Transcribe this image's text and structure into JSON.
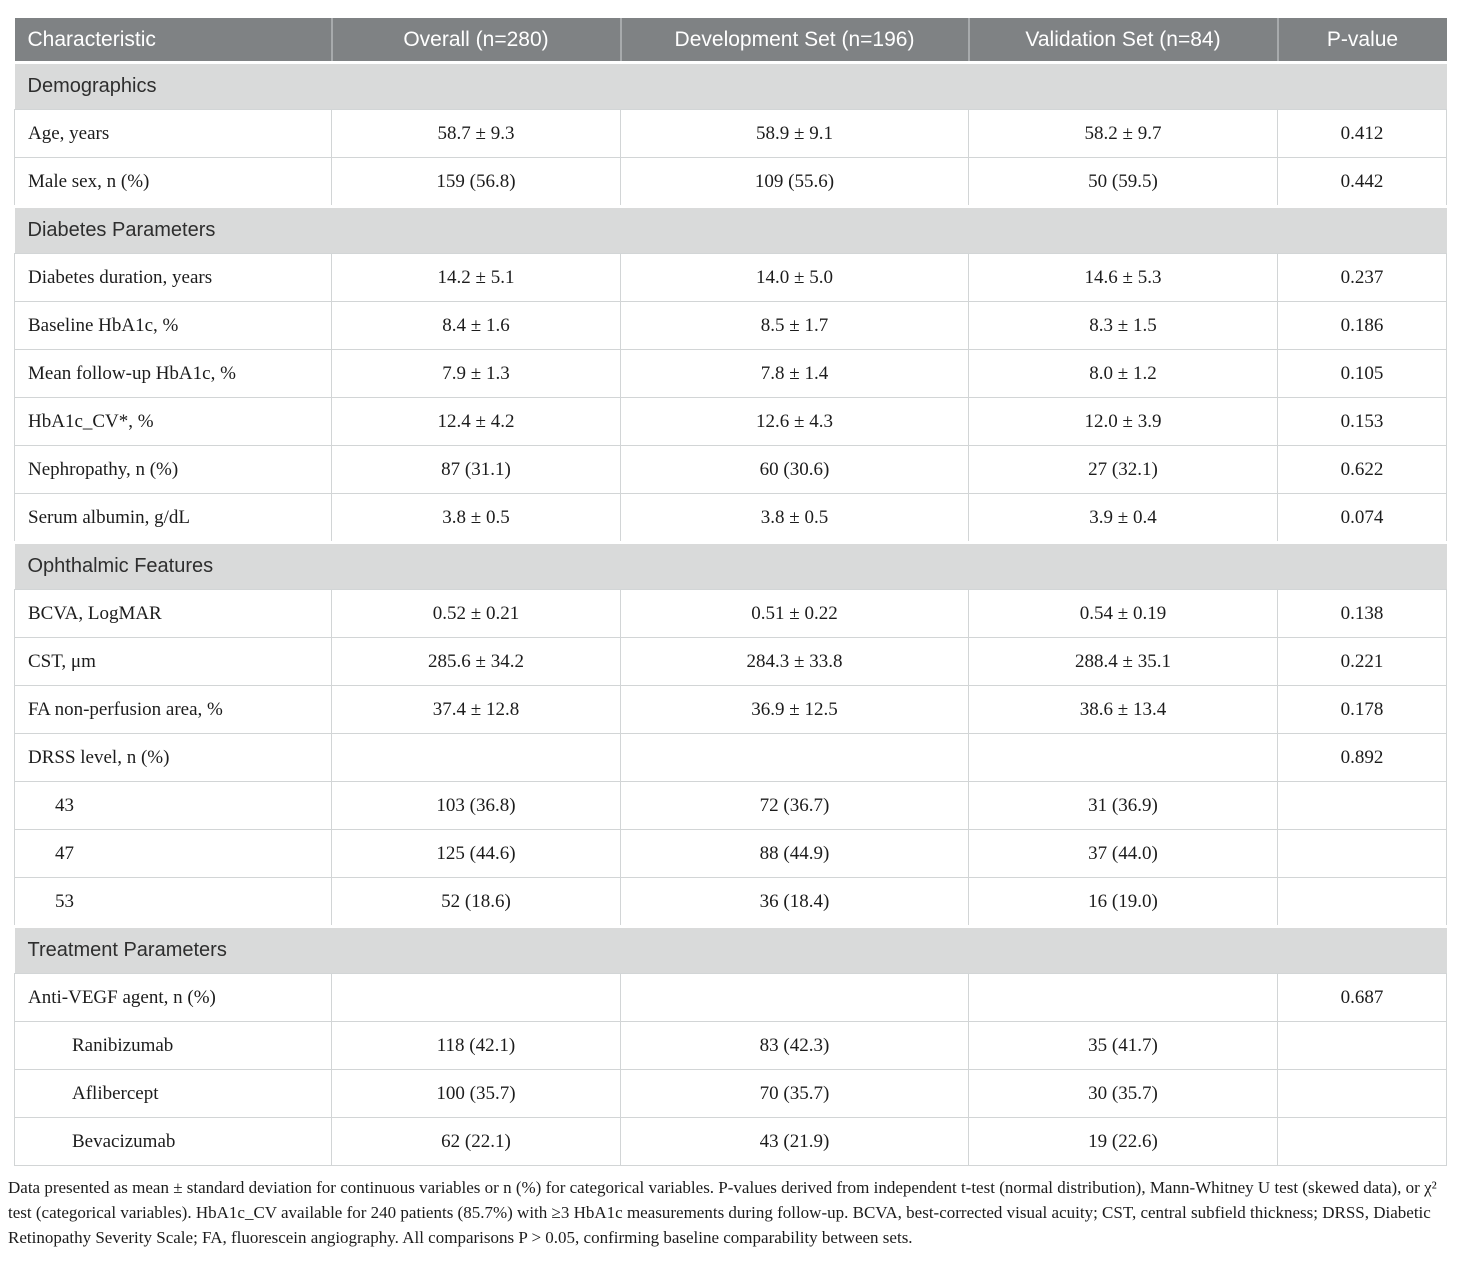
{
  "table": {
    "columns": [
      "Characteristic",
      "Overall (n=280)",
      "Development Set (n=196)",
      "Validation Set (n=84)",
      "P-value"
    ],
    "sections": [
      {
        "title": "Demographics",
        "rows": [
          {
            "label": "Age, years",
            "indent": 0,
            "overall": "58.7 ± 9.3",
            "development": "58.9 ± 9.1",
            "validation": "58.2 ± 9.7",
            "p": "0.412"
          },
          {
            "label": "Male sex, n (%)",
            "indent": 0,
            "overall": "159 (56.8)",
            "development": "109 (55.6)",
            "validation": "50 (59.5)",
            "p": "0.442"
          }
        ]
      },
      {
        "title": "Diabetes Parameters",
        "rows": [
          {
            "label": "Diabetes duration, years",
            "indent": 0,
            "overall": "14.2 ± 5.1",
            "development": "14.0 ± 5.0",
            "validation": "14.6 ± 5.3",
            "p": "0.237"
          },
          {
            "label": "Baseline HbA1c, %",
            "indent": 0,
            "overall": "8.4 ± 1.6",
            "development": "8.5 ± 1.7",
            "validation": "8.3 ± 1.5",
            "p": "0.186"
          },
          {
            "label": "Mean follow-up HbA1c, %",
            "indent": 0,
            "overall": "7.9 ± 1.3",
            "development": "7.8 ± 1.4",
            "validation": "8.0 ± 1.2",
            "p": "0.105"
          },
          {
            "label": "HbA1c_CV*, %",
            "indent": 0,
            "overall": "12.4 ± 4.2",
            "development": "12.6 ± 4.3",
            "validation": "12.0 ± 3.9",
            "p": "0.153"
          },
          {
            "label": "Nephropathy, n (%)",
            "indent": 0,
            "overall": "87 (31.1)",
            "development": "60 (30.6)",
            "validation": "27 (32.1)",
            "p": "0.622"
          },
          {
            "label": "Serum albumin, g/dL",
            "indent": 0,
            "overall": "3.8 ± 0.5",
            "development": "3.8 ± 0.5",
            "validation": "3.9 ± 0.4",
            "p": "0.074"
          }
        ]
      },
      {
        "title": "Ophthalmic Features",
        "rows": [
          {
            "label": "BCVA, LogMAR",
            "indent": 0,
            "overall": "0.52 ± 0.21",
            "development": "0.51 ± 0.22",
            "validation": "0.54 ± 0.19",
            "p": "0.138"
          },
          {
            "label": "CST, μm",
            "indent": 0,
            "overall": "285.6 ± 34.2",
            "development": "284.3 ± 33.8",
            "validation": "288.4 ± 35.1",
            "p": "0.221"
          },
          {
            "label": "FA non-perfusion area, %",
            "indent": 0,
            "overall": "37.4 ± 12.8",
            "development": "36.9 ± 12.5",
            "validation": "38.6 ± 13.4",
            "p": "0.178"
          },
          {
            "label": "DRSS level, n (%)",
            "indent": 0,
            "overall": "",
            "development": "",
            "validation": "",
            "p": "0.892"
          },
          {
            "label": "43",
            "indent": 1,
            "overall": "103 (36.8)",
            "development": "72 (36.7)",
            "validation": "31 (36.9)",
            "p": ""
          },
          {
            "label": "47",
            "indent": 1,
            "overall": "125 (44.6)",
            "development": "88 (44.9)",
            "validation": "37 (44.0)",
            "p": ""
          },
          {
            "label": "53",
            "indent": 1,
            "overall": "52 (18.6)",
            "development": "36 (18.4)",
            "validation": "16 (19.0)",
            "p": ""
          }
        ]
      },
      {
        "title": "Treatment Parameters",
        "rows": [
          {
            "label": "Anti-VEGF agent, n (%)",
            "indent": 0,
            "overall": "",
            "development": "",
            "validation": "",
            "p": "0.687"
          },
          {
            "label": "Ranibizumab",
            "indent": 2,
            "overall": "118 (42.1)",
            "development": "83 (42.3)",
            "validation": "35 (41.7)",
            "p": ""
          },
          {
            "label": "Aflibercept",
            "indent": 2,
            "overall": "100 (35.7)",
            "development": "70 (35.7)",
            "validation": "30 (35.7)",
            "p": ""
          },
          {
            "label": "Bevacizumab",
            "indent": 2,
            "overall": "62 (22.1)",
            "development": "43 (21.9)",
            "validation": "19 (22.6)",
            "p": ""
          }
        ]
      }
    ]
  },
  "footnote": "Data presented as mean ± standard deviation for continuous variables or n (%) for categorical variables. P-values derived from independent t-test (normal distribution), Mann-Whitney U test (skewed data), or χ² test (categorical variables). HbA1c_CV available for 240 patients (85.7%) with ≥3 HbA1c measurements during follow-up. BCVA, best-corrected visual acuity; CST, central subfield thickness; DRSS, Diabetic Retinopathy Severity Scale; FA, fluorescein angiography. All comparisons P > 0.05, confirming baseline comparability between sets.",
  "colors": {
    "header_background": "#7F8284",
    "header_text": "#FFFFFF",
    "section_background": "#D9DADA",
    "body_text": "#1C1C1C",
    "grid_line": "#D2D5D6"
  }
}
